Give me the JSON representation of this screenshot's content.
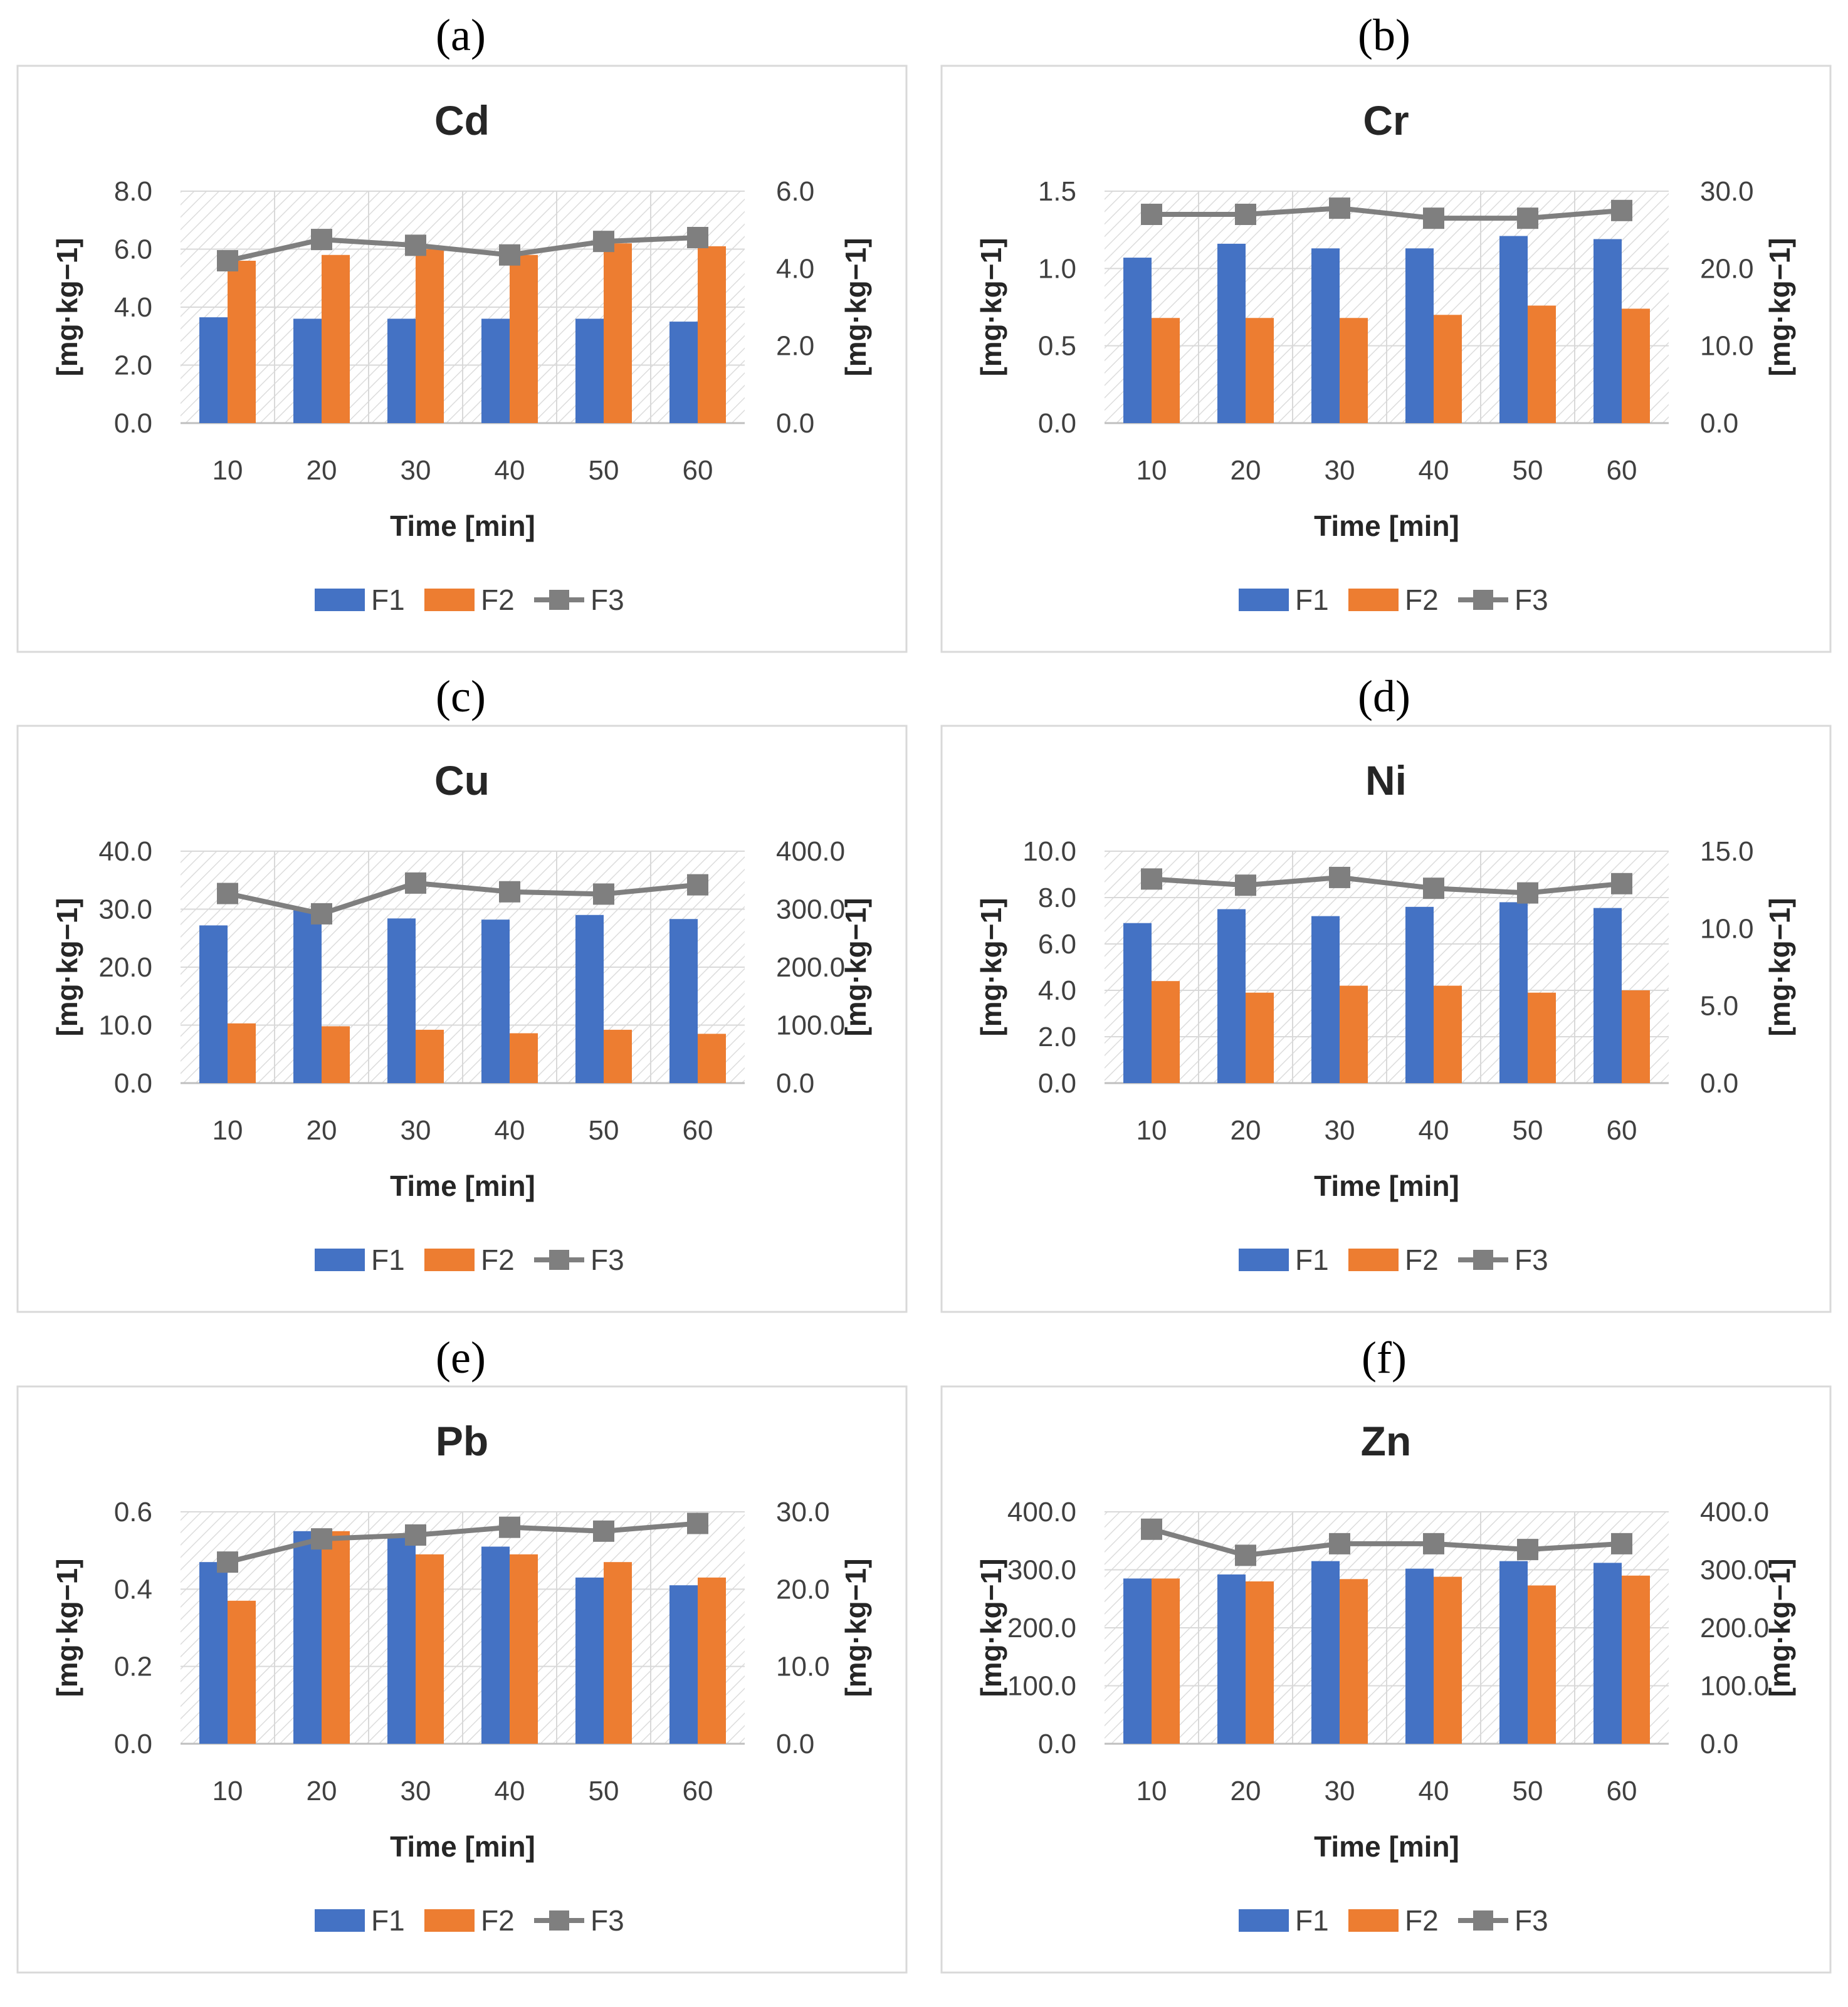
{
  "figure": {
    "x_label": "Time [min]",
    "y_label": "[mg·kg−1]"
  },
  "chart_data": [
    {
      "panel": "(a)",
      "title": "Cd",
      "type": "bar+line",
      "categories": [
        "10",
        "20",
        "30",
        "40",
        "50",
        "60"
      ],
      "xlabel": "Time [min]",
      "ylabel": "[mg·kg−1]",
      "y2label": "[mg·kg−1]",
      "ylim": [
        0,
        8
      ],
      "yticks": [
        "0.0",
        "2.0",
        "4.0",
        "6.0",
        "8.0"
      ],
      "y2lim": [
        0,
        6
      ],
      "y2ticks": [
        "0.0",
        "2.0",
        "4.0",
        "6.0"
      ],
      "series": [
        {
          "name": "F1",
          "type": "bar",
          "axis": "left",
          "color": "#4472C4",
          "values": [
            3.65,
            3.6,
            3.6,
            3.6,
            3.6,
            3.5
          ]
        },
        {
          "name": "F2",
          "type": "bar",
          "axis": "left",
          "color": "#ED7D31",
          "values": [
            5.6,
            5.8,
            6.0,
            5.8,
            6.2,
            6.1
          ]
        },
        {
          "name": "F3",
          "type": "line",
          "axis": "right",
          "color": "#7F7F7F",
          "values": [
            4.2,
            4.75,
            4.6,
            4.35,
            4.7,
            4.8
          ]
        }
      ],
      "legend": [
        "F1",
        "F2",
        "F3"
      ]
    },
    {
      "panel": "(b)",
      "title": "Cr",
      "type": "bar+line",
      "categories": [
        "10",
        "20",
        "30",
        "40",
        "50",
        "60"
      ],
      "xlabel": "Time [min]",
      "ylabel": "[mg·kg−1]",
      "y2label": "[mg·kg−1]",
      "ylim": [
        0,
        1.5
      ],
      "yticks": [
        "0.0",
        "0.5",
        "1.0",
        "1.5"
      ],
      "y2lim": [
        0,
        30
      ],
      "y2ticks": [
        "0.0",
        "10.0",
        "20.0",
        "30.0"
      ],
      "series": [
        {
          "name": "F1",
          "type": "bar",
          "axis": "left",
          "color": "#4472C4",
          "values": [
            1.07,
            1.16,
            1.13,
            1.13,
            1.21,
            1.19
          ]
        },
        {
          "name": "F2",
          "type": "bar",
          "axis": "left",
          "color": "#ED7D31",
          "values": [
            0.68,
            0.68,
            0.68,
            0.7,
            0.76,
            0.74
          ]
        },
        {
          "name": "F3",
          "type": "line",
          "axis": "right",
          "color": "#7F7F7F",
          "values": [
            27.0,
            27.0,
            27.8,
            26.5,
            26.5,
            27.5
          ]
        }
      ],
      "legend": [
        "F1",
        "F2",
        "F3"
      ]
    },
    {
      "panel": "(c)",
      "title": "Cu",
      "type": "bar+line",
      "categories": [
        "10",
        "20",
        "30",
        "40",
        "50",
        "60"
      ],
      "xlabel": "Time [min]",
      "ylabel": "[mg·kg−1]",
      "y2label": "[mg·kg−1]",
      "ylim": [
        0,
        40
      ],
      "yticks": [
        "0.0",
        "10.0",
        "20.0",
        "30.0",
        "40.0"
      ],
      "y2lim": [
        0,
        400
      ],
      "y2ticks": [
        "0.0",
        "100.0",
        "200.0",
        "300.0",
        "400.0"
      ],
      "series": [
        {
          "name": "F1",
          "type": "bar",
          "axis": "left",
          "color": "#4472C4",
          "values": [
            27.2,
            29.8,
            28.4,
            28.2,
            29.0,
            28.3
          ]
        },
        {
          "name": "F2",
          "type": "bar",
          "axis": "left",
          "color": "#ED7D31",
          "values": [
            10.3,
            9.8,
            9.2,
            8.6,
            9.2,
            8.5
          ]
        },
        {
          "name": "F3",
          "type": "line",
          "axis": "right",
          "color": "#7F7F7F",
          "values": [
            327,
            292,
            345,
            330,
            326,
            342
          ]
        }
      ],
      "legend": [
        "F1",
        "F2",
        "F3"
      ]
    },
    {
      "panel": "(d)",
      "title": "Ni",
      "type": "bar+line",
      "categories": [
        "10",
        "20",
        "30",
        "40",
        "50",
        "60"
      ],
      "xlabel": "Time [min]",
      "ylabel": "[mg·kg−1]",
      "y2label": "[mg·kg−1]",
      "ylim": [
        0,
        10
      ],
      "yticks": [
        "0.0",
        "2.0",
        "4.0",
        "6.0",
        "8.0",
        "10.0"
      ],
      "y2lim": [
        0,
        15
      ],
      "y2ticks": [
        "0.0",
        "5.0",
        "10.0",
        "15.0"
      ],
      "series": [
        {
          "name": "F1",
          "type": "bar",
          "axis": "left",
          "color": "#4472C4",
          "values": [
            6.9,
            7.5,
            7.2,
            7.6,
            7.8,
            7.55
          ]
        },
        {
          "name": "F2",
          "type": "bar",
          "axis": "left",
          "color": "#ED7D31",
          "values": [
            4.4,
            3.9,
            4.2,
            4.2,
            3.9,
            4.0
          ]
        },
        {
          "name": "F3",
          "type": "line",
          "axis": "right",
          "color": "#7F7F7F",
          "values": [
            13.2,
            12.8,
            13.3,
            12.6,
            12.3,
            12.9
          ]
        }
      ],
      "legend": [
        "F1",
        "F2",
        "F3"
      ]
    },
    {
      "panel": "(e)",
      "title": "Pb",
      "type": "bar+line",
      "categories": [
        "10",
        "20",
        "30",
        "40",
        "50",
        "60"
      ],
      "xlabel": "Time [min]",
      "ylabel": "[mg·kg−1]",
      "y2label": "[mg·kg−1]",
      "ylim": [
        0,
        0.6
      ],
      "yticks": [
        "0.0",
        "0.2",
        "0.4",
        "0.6"
      ],
      "y2lim": [
        0,
        30
      ],
      "y2ticks": [
        "0.0",
        "10.0",
        "20.0",
        "30.0"
      ],
      "series": [
        {
          "name": "F1",
          "type": "bar",
          "axis": "left",
          "color": "#4472C4",
          "values": [
            0.47,
            0.55,
            0.54,
            0.51,
            0.43,
            0.41
          ]
        },
        {
          "name": "F2",
          "type": "bar",
          "axis": "left",
          "color": "#ED7D31",
          "values": [
            0.37,
            0.55,
            0.49,
            0.49,
            0.47,
            0.43
          ]
        },
        {
          "name": "F3",
          "type": "line",
          "axis": "right",
          "color": "#7F7F7F",
          "values": [
            23.5,
            26.5,
            27.0,
            28.0,
            27.5,
            28.5
          ]
        }
      ],
      "legend": [
        "F1",
        "F2",
        "F3"
      ]
    },
    {
      "panel": "(f)",
      "title": "Zn",
      "type": "bar+line",
      "categories": [
        "10",
        "20",
        "30",
        "40",
        "50",
        "60"
      ],
      "xlabel": "Time [min]",
      "ylabel": "[mg·kg−1]",
      "y2label": "[mg·kg−1]",
      "ylim": [
        0,
        400
      ],
      "yticks": [
        "0.0",
        "100.0",
        "200.0",
        "300.0",
        "400.0"
      ],
      "y2lim": [
        0,
        400
      ],
      "y2ticks": [
        "0.0",
        "100.0",
        "200.0",
        "300.0",
        "400.0"
      ],
      "series": [
        {
          "name": "F1",
          "type": "bar",
          "axis": "left",
          "color": "#4472C4",
          "values": [
            285,
            292,
            315,
            302,
            315,
            312
          ]
        },
        {
          "name": "F2",
          "type": "bar",
          "axis": "left",
          "color": "#ED7D31",
          "values": [
            285,
            280,
            284,
            288,
            273,
            290
          ]
        },
        {
          "name": "F3",
          "type": "line",
          "axis": "right",
          "color": "#7F7F7F",
          "values": [
            370,
            325,
            345,
            345,
            335,
            345
          ]
        }
      ],
      "legend": [
        "F1",
        "F2",
        "F3"
      ]
    }
  ]
}
